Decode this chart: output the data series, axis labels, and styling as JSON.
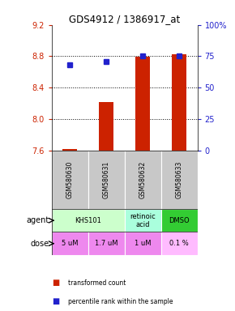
{
  "title": "GDS4912 / 1386917_at",
  "samples": [
    "GSM580630",
    "GSM580631",
    "GSM580632",
    "GSM580633"
  ],
  "bar_values": [
    7.62,
    8.22,
    8.79,
    8.83
  ],
  "dot_values": [
    68,
    71,
    75,
    75
  ],
  "ylim_left": [
    7.6,
    9.2
  ],
  "ylim_right": [
    0,
    100
  ],
  "yticks_left": [
    7.6,
    8.0,
    8.4,
    8.8,
    9.2
  ],
  "yticks_right": [
    0,
    25,
    50,
    75,
    100
  ],
  "ytick_labels_right": [
    "0",
    "25",
    "50",
    "75",
    "100%"
  ],
  "bar_color": "#cc2200",
  "dot_color": "#2222cc",
  "agent_groups": [
    {
      "cols": [
        0,
        1
      ],
      "label": "KHS101",
      "color": "#ccffcc"
    },
    {
      "cols": [
        2
      ],
      "label": "retinoic\nacid",
      "color": "#aaffdd"
    },
    {
      "cols": [
        3
      ],
      "label": "DMSO",
      "color": "#33cc33"
    }
  ],
  "dose_labels": [
    "5 uM",
    "1.7 uM",
    "1 uM",
    "0.1 %"
  ],
  "dose_colors": [
    "#ee88ee",
    "#ee88ee",
    "#ee88ee",
    "#ffbbff"
  ],
  "sample_box_color": "#c8c8c8",
  "legend_bar_label": "transformed count",
  "legend_dot_label": "percentile rank within the sample",
  "left_label_color": "#cc2200",
  "right_label_color": "#2222cc",
  "gridline_values": [
    8.0,
    8.4,
    8.8
  ]
}
